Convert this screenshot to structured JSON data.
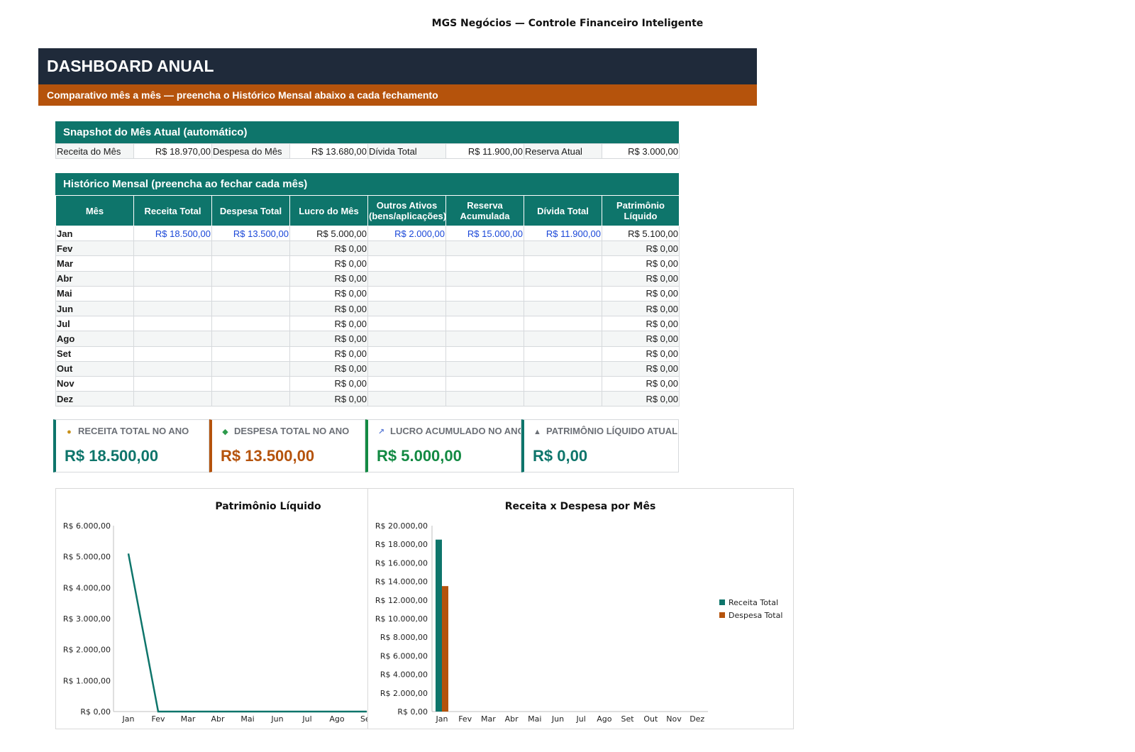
{
  "header": {
    "doc_title": "MGS Negócios — Controle Financeiro Inteligente",
    "banner_title": "DASHBOARD ANUAL",
    "banner_subtitle": "Comparativo mês a mês — preencha o Histórico Mensal abaixo a cada fechamento"
  },
  "snapshot": {
    "title": "Snapshot do Mês Atual (automático)",
    "items": [
      {
        "label": "Receita do Mês",
        "value": "R$ 18.970,00"
      },
      {
        "label": "Despesa do Mês",
        "value": "R$ 13.680,00"
      },
      {
        "label": "Dívida Total",
        "value": "R$ 11.900,00"
      },
      {
        "label": "Reserva Atual",
        "value": "R$ 3.000,00"
      }
    ]
  },
  "history": {
    "title": "Histórico Mensal (preencha ao fechar cada mês)",
    "columns": [
      "Mês",
      "Receita Total",
      "Despesa Total",
      "Lucro do Mês",
      "Outros Ativos (bens/aplicações)",
      "Reserva Acumulada",
      "Dívida Total",
      "Patrimônio Líquido"
    ],
    "rows": [
      [
        "Jan",
        "R$ 18.500,00",
        "R$ 13.500,00",
        "R$ 5.000,00",
        "R$ 2.000,00",
        "R$ 15.000,00",
        "R$ 11.900,00",
        "R$ 5.100,00"
      ],
      [
        "Fev",
        "",
        "",
        "R$ 0,00",
        "",
        "",
        "",
        "R$ 0,00"
      ],
      [
        "Mar",
        "",
        "",
        "R$ 0,00",
        "",
        "",
        "",
        "R$ 0,00"
      ],
      [
        "Abr",
        "",
        "",
        "R$ 0,00",
        "",
        "",
        "",
        "R$ 0,00"
      ],
      [
        "Mai",
        "",
        "",
        "R$ 0,00",
        "",
        "",
        "",
        "R$ 0,00"
      ],
      [
        "Jun",
        "",
        "",
        "R$ 0,00",
        "",
        "",
        "",
        "R$ 0,00"
      ],
      [
        "Jul",
        "",
        "",
        "R$ 0,00",
        "",
        "",
        "",
        "R$ 0,00"
      ],
      [
        "Ago",
        "",
        "",
        "R$ 0,00",
        "",
        "",
        "",
        "R$ 0,00"
      ],
      [
        "Set",
        "",
        "",
        "R$ 0,00",
        "",
        "",
        "",
        "R$ 0,00"
      ],
      [
        "Out",
        "",
        "",
        "R$ 0,00",
        "",
        "",
        "",
        "R$ 0,00"
      ],
      [
        "Nov",
        "",
        "",
        "R$ 0,00",
        "",
        "",
        "",
        "R$ 0,00"
      ],
      [
        "Dez",
        "",
        "",
        "R$ 0,00",
        "",
        "",
        "",
        "R$ 0,00"
      ]
    ]
  },
  "kpis": [
    {
      "label": "RECEITA TOTAL NO ANO",
      "value": "R$ 18.500,00",
      "icon": "money-bag-icon",
      "color": "#0e756b"
    },
    {
      "label": "DESPESA TOTAL NO ANO",
      "value": "R$ 13.500,00",
      "icon": "money-wings-icon",
      "color": "#b5530c"
    },
    {
      "label": "LUCRO ACUMULADO NO ANO",
      "value": "R$ 5.000,00",
      "icon": "chart-up-icon",
      "color": "#138a43"
    },
    {
      "label": "PATRIMÔNIO LÍQUIDO ATUAL",
      "value": "R$ 0,00",
      "icon": "bank-icon",
      "color": "#0e756b"
    }
  ],
  "colors": {
    "teal": "#0e756b",
    "orange": "#b5530c",
    "navy": "#1f2a3a",
    "input_blue": "#1a47d8"
  },
  "chart_data": [
    {
      "type": "line",
      "title": "Patrimônio Líquido",
      "categories": [
        "Jan",
        "Fev",
        "Mar",
        "Abr",
        "Mai",
        "Jun",
        "Jul",
        "Ago",
        "Set"
      ],
      "series": [
        {
          "values": [
            5100,
            0,
            0,
            0,
            0,
            0,
            0,
            0,
            0
          ],
          "color": "#0e756b"
        }
      ],
      "ylim": [
        0,
        6000
      ],
      "yticks": [
        "R$ 0,00",
        "R$ 1.000,00",
        "R$ 2.000,00",
        "R$ 3.000,00",
        "R$ 4.000,00",
        "R$ 5.000,00",
        "R$ 6.000,00"
      ],
      "grid": false
    },
    {
      "type": "bar",
      "title": "Receita x Despesa por Mês",
      "categories": [
        "Jan",
        "Fev",
        "Mar",
        "Abr",
        "Mai",
        "Jun",
        "Jul",
        "Ago",
        "Set",
        "Out",
        "Nov",
        "Dez"
      ],
      "series": [
        {
          "name": "Receita Total",
          "values": [
            18500,
            0,
            0,
            0,
            0,
            0,
            0,
            0,
            0,
            0,
            0,
            0
          ],
          "color": "#0e756b"
        },
        {
          "name": "Despesa Total",
          "values": [
            13500,
            0,
            0,
            0,
            0,
            0,
            0,
            0,
            0,
            0,
            0,
            0
          ],
          "color": "#b5530c"
        }
      ],
      "ylim": [
        0,
        20000
      ],
      "yticks": [
        "R$ 0,00",
        "R$ 2.000,00",
        "R$ 4.000,00",
        "R$ 6.000,00",
        "R$ 8.000,00",
        "R$ 10.000,00",
        "R$ 12.000,00",
        "R$ 14.000,00",
        "R$ 16.000,00",
        "R$ 18.000,00",
        "R$ 20.000,00"
      ],
      "legend": "right",
      "grid": false
    }
  ]
}
